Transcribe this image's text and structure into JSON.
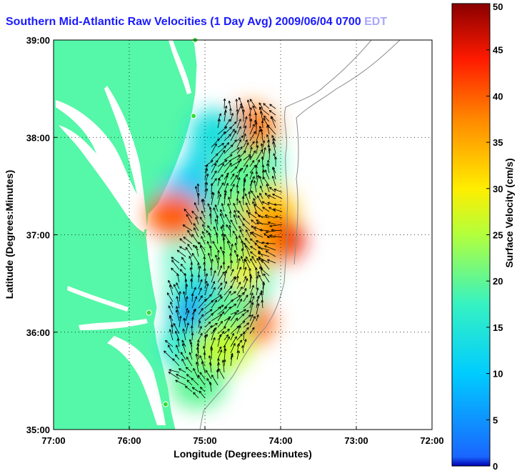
{
  "title": {
    "main": "Southern Mid-Atlantic Raw Velocities (1 Day Avg) 2009/06/04 0700",
    "obscured_suffix": " EDT"
  },
  "map": {
    "x_axis_label": "Longitude (Degrees:Minutes)",
    "y_axis_label": "Latitude (Degrees:Minutes)",
    "x_ticks": [
      "77:00",
      "76:00",
      "75:00",
      "74:00",
      "73:00",
      "72:00"
    ],
    "y_ticks": [
      "39:00",
      "38:00",
      "37:00",
      "36:00",
      "35:00"
    ],
    "lon_range": [
      -77,
      -72
    ],
    "lat_range": [
      35,
      39
    ],
    "land_color": "#55f7a8",
    "grid": "dotted"
  },
  "colorbar": {
    "label": "Surface Velocity (cm/s)",
    "ticks": [
      "0",
      "5",
      "10",
      "15",
      "20",
      "25",
      "30",
      "35",
      "40",
      "45",
      "50"
    ],
    "range": [
      0,
      50
    ],
    "colormap": "jet"
  },
  "field_patches": [
    {
      "lon": -74.9,
      "lat": 37.75,
      "v": 12
    },
    {
      "lon": -74.55,
      "lat": 37.85,
      "v": 22
    },
    {
      "lon": -74.4,
      "lat": 38.1,
      "v": 38
    },
    {
      "lon": -74.85,
      "lat": 38.05,
      "v": 14
    },
    {
      "lon": -74.7,
      "lat": 37.45,
      "v": 24
    },
    {
      "lon": -74.35,
      "lat": 37.4,
      "v": 28
    },
    {
      "lon": -74.15,
      "lat": 37.25,
      "v": 33
    },
    {
      "lon": -74.05,
      "lat": 36.95,
      "v": 45
    },
    {
      "lon": -74.35,
      "lat": 36.9,
      "v": 36
    },
    {
      "lon": -74.85,
      "lat": 37.05,
      "v": 18
    },
    {
      "lon": -75.25,
      "lat": 37.4,
      "v": 9
    },
    {
      "lon": -75.4,
      "lat": 37.2,
      "v": 40
    },
    {
      "lon": -74.6,
      "lat": 36.65,
      "v": 30
    },
    {
      "lon": -74.95,
      "lat": 36.35,
      "v": 12
    },
    {
      "lon": -75.05,
      "lat": 36.15,
      "v": 5
    },
    {
      "lon": -74.45,
      "lat": 36.1,
      "v": 40
    },
    {
      "lon": -74.7,
      "lat": 36.2,
      "v": 20
    },
    {
      "lon": -75.25,
      "lat": 35.85,
      "v": 16
    },
    {
      "lon": -74.9,
      "lat": 35.75,
      "v": 22
    },
    {
      "lon": -75.1,
      "lat": 35.45,
      "v": 20
    },
    {
      "lon": -74.75,
      "lat": 35.85,
      "v": 26
    },
    {
      "lon": -74.55,
      "lat": 37.55,
      "v": 20
    },
    {
      "lon": -74.75,
      "lat": 36.85,
      "v": 22
    }
  ],
  "stations": [
    {
      "lon": -75.13,
      "lat": 39.0
    },
    {
      "lon": -75.15,
      "lat": 38.22
    },
    {
      "lon": -75.74,
      "lat": 36.2
    },
    {
      "lon": -75.52,
      "lat": 35.26
    }
  ]
}
